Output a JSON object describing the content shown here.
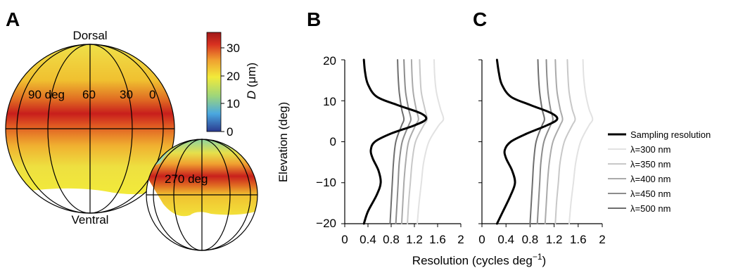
{
  "panels": {
    "a": {
      "letter": "A",
      "dorsal_label": "Dorsal",
      "ventral_label": "Ventral",
      "meridian_labels": [
        "90 deg",
        "60",
        "30",
        "0"
      ],
      "back_label": "270 deg",
      "colorbar": {
        "ticks": [
          "30",
          "20",
          "10",
          "0"
        ],
        "label_italic": "D",
        "label_rest": " (μm)",
        "colors": [
          "#2a3a8f",
          "#4aa8e0",
          "#9ed67a",
          "#f2ea3a",
          "#f0a030",
          "#d83020",
          "#a01818"
        ]
      }
    },
    "b": {
      "letter": "B"
    },
    "c": {
      "letter": "C"
    }
  },
  "axes": {
    "ylabel": "Elevation (deg)",
    "xlabel_main": "Resolution (cycles deg",
    "xlabel_sup": "−1",
    "xlabel_close": ")",
    "x_ticks": [
      "0",
      "0.4",
      "0.8",
      "1.2",
      "1.6",
      "2"
    ],
    "y_ticks": [
      "20",
      "10",
      "0",
      "−10",
      "−20"
    ]
  },
  "legend": {
    "entries": [
      "Sampling resolution",
      "λ=300 nm",
      "λ=350 nm",
      "λ=400 nm",
      "λ=450 nm",
      "λ=500 nm"
    ],
    "colors": [
      "#000000",
      "#e2e2e2",
      "#c8c8c8",
      "#aaaaaa",
      "#8c8c8c",
      "#6e6e6e"
    ]
  },
  "chart_data": [
    {
      "type": "line",
      "panel": "B",
      "xlabel": "Resolution (cycles deg−1)",
      "ylabel": "Elevation (deg)",
      "xlim": [
        0,
        2
      ],
      "ylim": [
        -20,
        20
      ],
      "series": [
        {
          "name": "Sampling resolution",
          "color": "#000000",
          "points": [
            [
              0.33,
              -20
            ],
            [
              0.4,
              -17
            ],
            [
              0.55,
              -13
            ],
            [
              0.62,
              -10
            ],
            [
              0.58,
              -7
            ],
            [
              0.48,
              -4
            ],
            [
              0.45,
              -2
            ],
            [
              0.52,
              0
            ],
            [
              0.8,
              2
            ],
            [
              1.2,
              4
            ],
            [
              1.4,
              5.5
            ],
            [
              1.3,
              7
            ],
            [
              0.9,
              9
            ],
            [
              0.55,
              11
            ],
            [
              0.4,
              14
            ],
            [
              0.35,
              17
            ],
            [
              0.33,
              20
            ]
          ]
        },
        {
          "name": "λ=300 nm",
          "color": "#e2e2e2",
          "points": [
            [
              1.25,
              -20
            ],
            [
              1.28,
              -15
            ],
            [
              1.32,
              -10
            ],
            [
              1.36,
              -5
            ],
            [
              1.45,
              0
            ],
            [
              1.62,
              4
            ],
            [
              1.7,
              5.5
            ],
            [
              1.65,
              8
            ],
            [
              1.58,
              12
            ],
            [
              1.55,
              16
            ],
            [
              1.54,
              20
            ]
          ]
        },
        {
          "name": "λ=350 nm",
          "color": "#c8c8c8",
          "points": [
            [
              1.08,
              -20
            ],
            [
              1.1,
              -15
            ],
            [
              1.13,
              -10
            ],
            [
              1.16,
              -5
            ],
            [
              1.22,
              0
            ],
            [
              1.36,
              4
            ],
            [
              1.42,
              5.5
            ],
            [
              1.38,
              8
            ],
            [
              1.32,
              12
            ],
            [
              1.3,
              16
            ],
            [
              1.29,
              20
            ]
          ]
        },
        {
          "name": "λ=400 nm",
          "color": "#aaaaaa",
          "points": [
            [
              0.98,
              -20
            ],
            [
              1.0,
              -15
            ],
            [
              1.02,
              -10
            ],
            [
              1.05,
              -5
            ],
            [
              1.1,
              0
            ],
            [
              1.22,
              4
            ],
            [
              1.27,
              5.5
            ],
            [
              1.23,
              8
            ],
            [
              1.18,
              12
            ],
            [
              1.16,
              16
            ],
            [
              1.15,
              20
            ]
          ]
        },
        {
          "name": "λ=450 nm",
          "color": "#8c8c8c",
          "points": [
            [
              0.88,
              -20
            ],
            [
              0.9,
              -15
            ],
            [
              0.92,
              -10
            ],
            [
              0.94,
              -5
            ],
            [
              0.99,
              0
            ],
            [
              1.1,
              4
            ],
            [
              1.14,
              5.5
            ],
            [
              1.1,
              8
            ],
            [
              1.05,
              12
            ],
            [
              1.03,
              16
            ],
            [
              1.02,
              20
            ]
          ]
        },
        {
          "name": "λ=500 nm",
          "color": "#6e6e6e",
          "points": [
            [
              0.78,
              -20
            ],
            [
              0.8,
              -15
            ],
            [
              0.82,
              -10
            ],
            [
              0.84,
              -5
            ],
            [
              0.88,
              0
            ],
            [
              0.98,
              4
            ],
            [
              1.02,
              5.5
            ],
            [
              0.98,
              8
            ],
            [
              0.94,
              12
            ],
            [
              0.92,
              16
            ],
            [
              0.91,
              20
            ]
          ]
        }
      ]
    },
    {
      "type": "line",
      "panel": "C",
      "xlabel": "Resolution (cycles deg−1)",
      "xlim": [
        0,
        2
      ],
      "ylim": [
        -20,
        20
      ],
      "series": [
        {
          "name": "Sampling resolution",
          "color": "#000000",
          "points": [
            [
              0.25,
              -20
            ],
            [
              0.35,
              -17
            ],
            [
              0.48,
              -13
            ],
            [
              0.55,
              -10
            ],
            [
              0.5,
              -7
            ],
            [
              0.4,
              -4
            ],
            [
              0.38,
              -2
            ],
            [
              0.48,
              0
            ],
            [
              0.75,
              2
            ],
            [
              1.08,
              4
            ],
            [
              1.25,
              5.5
            ],
            [
              1.15,
              7
            ],
            [
              0.8,
              9
            ],
            [
              0.48,
              11
            ],
            [
              0.33,
              14
            ],
            [
              0.28,
              17
            ],
            [
              0.25,
              20
            ]
          ]
        },
        {
          "name": "λ=300 nm",
          "color": "#e2e2e2",
          "points": [
            [
              1.45,
              -20
            ],
            [
              1.48,
              -15
            ],
            [
              1.52,
              -10
            ],
            [
              1.56,
              -5
            ],
            [
              1.64,
              0
            ],
            [
              1.78,
              4
            ],
            [
              1.84,
              5.5
            ],
            [
              1.78,
              8
            ],
            [
              1.72,
              12
            ],
            [
              1.69,
              16
            ],
            [
              1.68,
              20
            ]
          ]
        },
        {
          "name": "λ=350 nm",
          "color": "#c8c8c8",
          "points": [
            [
              1.22,
              -20
            ],
            [
              1.24,
              -15
            ],
            [
              1.27,
              -10
            ],
            [
              1.3,
              -5
            ],
            [
              1.37,
              0
            ],
            [
              1.5,
              4
            ],
            [
              1.55,
              5.5
            ],
            [
              1.5,
              8
            ],
            [
              1.45,
              12
            ],
            [
              1.43,
              16
            ],
            [
              1.42,
              20
            ]
          ]
        },
        {
          "name": "λ=400 nm",
          "color": "#aaaaaa",
          "points": [
            [
              1.05,
              -20
            ],
            [
              1.07,
              -15
            ],
            [
              1.09,
              -10
            ],
            [
              1.12,
              -5
            ],
            [
              1.18,
              0
            ],
            [
              1.3,
              4
            ],
            [
              1.34,
              5.5
            ],
            [
              1.3,
              8
            ],
            [
              1.25,
              12
            ],
            [
              1.23,
              16
            ],
            [
              1.22,
              20
            ]
          ]
        },
        {
          "name": "λ=450 nm",
          "color": "#8c8c8c",
          "points": [
            [
              0.92,
              -20
            ],
            [
              0.94,
              -15
            ],
            [
              0.96,
              -10
            ],
            [
              0.98,
              -5
            ],
            [
              1.03,
              0
            ],
            [
              1.14,
              4
            ],
            [
              1.18,
              5.5
            ],
            [
              1.14,
              8
            ],
            [
              1.1,
              12
            ],
            [
              1.08,
              16
            ],
            [
              1.07,
              20
            ]
          ]
        },
        {
          "name": "λ=500 nm",
          "color": "#6e6e6e",
          "points": [
            [
              0.8,
              -20
            ],
            [
              0.82,
              -15
            ],
            [
              0.84,
              -10
            ],
            [
              0.86,
              -5
            ],
            [
              0.9,
              0
            ],
            [
              1.0,
              4
            ],
            [
              1.04,
              5.5
            ],
            [
              1.0,
              8
            ],
            [
              0.96,
              12
            ],
            [
              0.94,
              16
            ],
            [
              0.93,
              20
            ]
          ]
        }
      ]
    }
  ]
}
